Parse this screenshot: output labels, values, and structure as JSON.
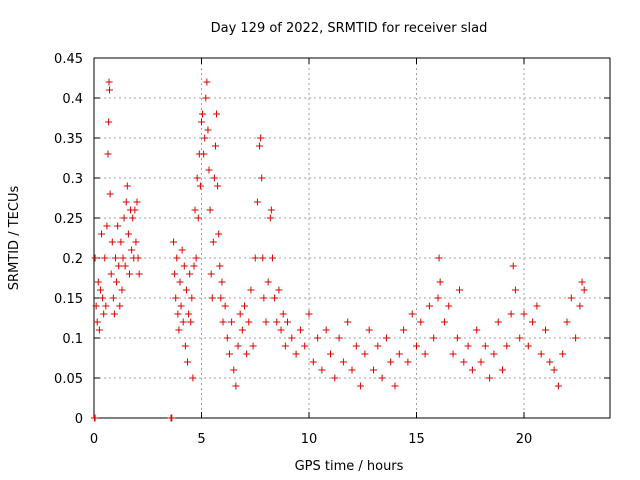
{
  "chart_data": {
    "type": "scatter",
    "title": "Day 129 of 2022, SRMTID for receiver slad",
    "xlabel": "GPS time / hours",
    "ylabel": "SRMTID / TECUs",
    "xlim": [
      0,
      24
    ],
    "ylim": [
      0,
      0.45
    ],
    "xticks": [
      0,
      5,
      10,
      15,
      20
    ],
    "xtick_labels": [
      "0",
      "5",
      "10",
      "15",
      "20"
    ],
    "yticks": [
      0,
      0.05,
      0.1,
      0.15,
      0.2,
      0.25,
      0.3,
      0.35,
      0.4,
      0.45
    ],
    "ytick_labels": [
      "0",
      "0.05",
      "0.1",
      "0.15",
      "0.2",
      "0.25",
      "0.3",
      "0.35",
      "0.4",
      "0.45"
    ],
    "grid": true,
    "marker": "+",
    "color": "#e00000",
    "series": [
      {
        "name": "SRMTID",
        "points": [
          [
            0.02,
            0.0
          ],
          [
            0.05,
            0.0
          ],
          [
            3.58,
            0.0
          ],
          [
            3.62,
            0.0
          ],
          [
            0.05,
            0.2
          ],
          [
            0.1,
            0.14
          ],
          [
            0.15,
            0.12
          ],
          [
            0.2,
            0.17
          ],
          [
            0.25,
            0.11
          ],
          [
            0.3,
            0.16
          ],
          [
            0.35,
            0.23
          ],
          [
            0.4,
            0.15
          ],
          [
            0.45,
            0.13
          ],
          [
            0.5,
            0.2
          ],
          [
            0.55,
            0.14
          ],
          [
            0.6,
            0.24
          ],
          [
            0.65,
            0.33
          ],
          [
            0.68,
            0.37
          ],
          [
            0.7,
            0.42
          ],
          [
            0.72,
            0.41
          ],
          [
            0.75,
            0.28
          ],
          [
            0.8,
            0.18
          ],
          [
            0.85,
            0.22
          ],
          [
            0.9,
            0.15
          ],
          [
            0.95,
            0.13
          ],
          [
            1.0,
            0.2
          ],
          [
            1.05,
            0.17
          ],
          [
            1.1,
            0.24
          ],
          [
            1.15,
            0.19
          ],
          [
            1.2,
            0.14
          ],
          [
            1.25,
            0.22
          ],
          [
            1.3,
            0.16
          ],
          [
            1.35,
            0.2
          ],
          [
            1.4,
            0.25
          ],
          [
            1.45,
            0.19
          ],
          [
            1.5,
            0.27
          ],
          [
            1.55,
            0.29
          ],
          [
            1.6,
            0.23
          ],
          [
            1.65,
            0.18
          ],
          [
            1.7,
            0.26
          ],
          [
            1.75,
            0.21
          ],
          [
            1.8,
            0.25
          ],
          [
            1.85,
            0.2
          ],
          [
            1.9,
            0.26
          ],
          [
            1.95,
            0.22
          ],
          [
            2.0,
            0.27
          ],
          [
            2.05,
            0.2
          ],
          [
            2.1,
            0.18
          ],
          [
            3.7,
            0.22
          ],
          [
            3.75,
            0.18
          ],
          [
            3.8,
            0.15
          ],
          [
            3.85,
            0.2
          ],
          [
            3.9,
            0.13
          ],
          [
            3.95,
            0.11
          ],
          [
            4.0,
            0.17
          ],
          [
            4.05,
            0.14
          ],
          [
            4.1,
            0.21
          ],
          [
            4.15,
            0.12
          ],
          [
            4.2,
            0.19
          ],
          [
            4.25,
            0.09
          ],
          [
            4.3,
            0.16
          ],
          [
            4.35,
            0.07
          ],
          [
            4.4,
            0.13
          ],
          [
            4.45,
            0.18
          ],
          [
            4.5,
            0.12
          ],
          [
            4.55,
            0.15
          ],
          [
            4.6,
            0.05
          ],
          [
            4.65,
            0.19
          ],
          [
            4.7,
            0.26
          ],
          [
            4.75,
            0.2
          ],
          [
            4.8,
            0.3
          ],
          [
            4.85,
            0.25
          ],
          [
            4.9,
            0.33
          ],
          [
            4.95,
            0.29
          ],
          [
            5.0,
            0.37
          ],
          [
            5.05,
            0.38
          ],
          [
            5.1,
            0.33
          ],
          [
            5.15,
            0.35
          ],
          [
            5.2,
            0.4
          ],
          [
            5.25,
            0.42
          ],
          [
            5.3,
            0.36
          ],
          [
            5.35,
            0.31
          ],
          [
            5.4,
            0.26
          ],
          [
            5.45,
            0.18
          ],
          [
            5.5,
            0.15
          ],
          [
            5.55,
            0.22
          ],
          [
            5.6,
            0.3
          ],
          [
            5.65,
            0.34
          ],
          [
            5.7,
            0.38
          ],
          [
            5.75,
            0.29
          ],
          [
            5.8,
            0.23
          ],
          [
            5.85,
            0.19
          ],
          [
            5.9,
            0.15
          ],
          [
            5.95,
            0.17
          ],
          [
            6.0,
            0.12
          ],
          [
            6.1,
            0.14
          ],
          [
            6.2,
            0.1
          ],
          [
            6.3,
            0.08
          ],
          [
            6.4,
            0.12
          ],
          [
            6.5,
            0.06
          ],
          [
            6.6,
            0.04
          ],
          [
            6.7,
            0.09
          ],
          [
            6.8,
            0.13
          ],
          [
            6.9,
            0.11
          ],
          [
            7.0,
            0.14
          ],
          [
            7.1,
            0.08
          ],
          [
            7.2,
            0.12
          ],
          [
            7.3,
            0.16
          ],
          [
            7.4,
            0.09
          ],
          [
            7.5,
            0.2
          ],
          [
            7.6,
            0.27
          ],
          [
            7.7,
            0.34
          ],
          [
            7.75,
            0.35
          ],
          [
            7.8,
            0.3
          ],
          [
            7.85,
            0.2
          ],
          [
            7.9,
            0.15
          ],
          [
            8.0,
            0.12
          ],
          [
            8.1,
            0.17
          ],
          [
            8.2,
            0.25
          ],
          [
            8.25,
            0.26
          ],
          [
            8.3,
            0.2
          ],
          [
            8.4,
            0.15
          ],
          [
            8.5,
            0.12
          ],
          [
            8.6,
            0.16
          ],
          [
            8.7,
            0.11
          ],
          [
            8.8,
            0.13
          ],
          [
            8.9,
            0.09
          ],
          [
            9.0,
            0.12
          ],
          [
            9.2,
            0.1
          ],
          [
            9.4,
            0.08
          ],
          [
            9.6,
            0.11
          ],
          [
            9.8,
            0.09
          ],
          [
            10.0,
            0.13
          ],
          [
            10.2,
            0.07
          ],
          [
            10.4,
            0.1
          ],
          [
            10.6,
            0.06
          ],
          [
            10.8,
            0.11
          ],
          [
            11.0,
            0.08
          ],
          [
            11.2,
            0.05
          ],
          [
            11.4,
            0.1
          ],
          [
            11.6,
            0.07
          ],
          [
            11.8,
            0.12
          ],
          [
            12.0,
            0.06
          ],
          [
            12.2,
            0.09
          ],
          [
            12.4,
            0.04
          ],
          [
            12.6,
            0.08
          ],
          [
            12.8,
            0.11
          ],
          [
            13.0,
            0.06
          ],
          [
            13.2,
            0.09
          ],
          [
            13.4,
            0.05
          ],
          [
            13.6,
            0.1
          ],
          [
            13.8,
            0.07
          ],
          [
            14.0,
            0.04
          ],
          [
            14.2,
            0.08
          ],
          [
            14.4,
            0.11
          ],
          [
            14.6,
            0.07
          ],
          [
            14.8,
            0.13
          ],
          [
            15.0,
            0.09
          ],
          [
            15.2,
            0.12
          ],
          [
            15.4,
            0.08
          ],
          [
            15.6,
            0.14
          ],
          [
            15.8,
            0.1
          ],
          [
            16.0,
            0.15
          ],
          [
            16.05,
            0.2
          ],
          [
            16.1,
            0.17
          ],
          [
            16.3,
            0.12
          ],
          [
            16.5,
            0.14
          ],
          [
            16.7,
            0.08
          ],
          [
            16.9,
            0.1
          ],
          [
            17.0,
            0.16
          ],
          [
            17.2,
            0.07
          ],
          [
            17.4,
            0.09
          ],
          [
            17.6,
            0.06
          ],
          [
            17.8,
            0.11
          ],
          [
            18.0,
            0.07
          ],
          [
            18.2,
            0.09
          ],
          [
            18.4,
            0.05
          ],
          [
            18.6,
            0.08
          ],
          [
            18.8,
            0.12
          ],
          [
            19.0,
            0.06
          ],
          [
            19.2,
            0.09
          ],
          [
            19.4,
            0.13
          ],
          [
            19.5,
            0.19
          ],
          [
            19.6,
            0.16
          ],
          [
            19.8,
            0.1
          ],
          [
            20.0,
            0.13
          ],
          [
            20.2,
            0.09
          ],
          [
            20.4,
            0.12
          ],
          [
            20.6,
            0.14
          ],
          [
            20.8,
            0.08
          ],
          [
            21.0,
            0.11
          ],
          [
            21.2,
            0.07
          ],
          [
            21.4,
            0.06
          ],
          [
            21.6,
            0.04
          ],
          [
            21.8,
            0.08
          ],
          [
            22.0,
            0.12
          ],
          [
            22.2,
            0.15
          ],
          [
            22.4,
            0.1
          ],
          [
            22.6,
            0.14
          ],
          [
            22.7,
            0.17
          ],
          [
            22.8,
            0.16
          ]
        ]
      }
    ]
  }
}
